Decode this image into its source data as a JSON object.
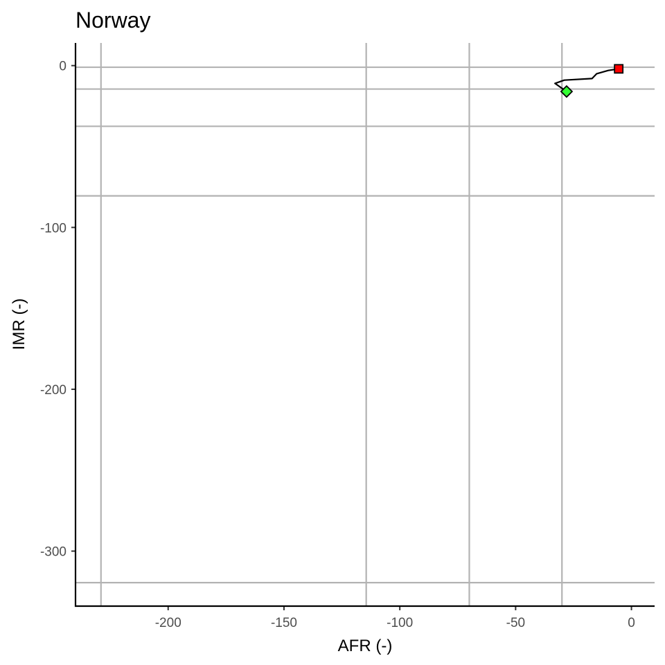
{
  "chart_data": {
    "type": "line",
    "title": "Norway",
    "xlabel": "AFR (-)",
    "ylabel": "IMR (-)",
    "xlim": [
      -240,
      10
    ],
    "ylim": [
      -334,
      14
    ],
    "x_ticks": [
      -200,
      -150,
      -100,
      -50,
      0
    ],
    "x_tick_labels": [
      "-200",
      "-150",
      "-100",
      "-50",
      "0"
    ],
    "y_ticks": [
      0,
      -100,
      -200,
      -300
    ],
    "y_tick_labels": [
      "0",
      "-100",
      "-200",
      "-300"
    ],
    "vertical_reference_lines_x": [
      -229,
      -114.5,
      -70,
      -30
    ],
    "horizontal_reference_lines_y": [
      -1,
      -14.5,
      -37.5,
      -80.5,
      -319.5
    ],
    "series": [
      {
        "values": [
          {
            "x": -28,
            "y": -16
          },
          {
            "x": -33,
            "y": -11
          },
          {
            "x": -29,
            "y": -9
          },
          {
            "x": -17,
            "y": -8
          },
          {
            "x": -15,
            "y": -5
          },
          {
            "x": -10,
            "y": -3
          },
          {
            "x": -5.5,
            "y": -2
          }
        ]
      }
    ],
    "markers": [
      {
        "shape": "diamond",
        "x": -28,
        "y": -16,
        "color": "#33ff33"
      },
      {
        "shape": "square",
        "x": -5.5,
        "y": -2,
        "color": "#ff0000"
      }
    ],
    "grid": false,
    "legend": "none"
  }
}
